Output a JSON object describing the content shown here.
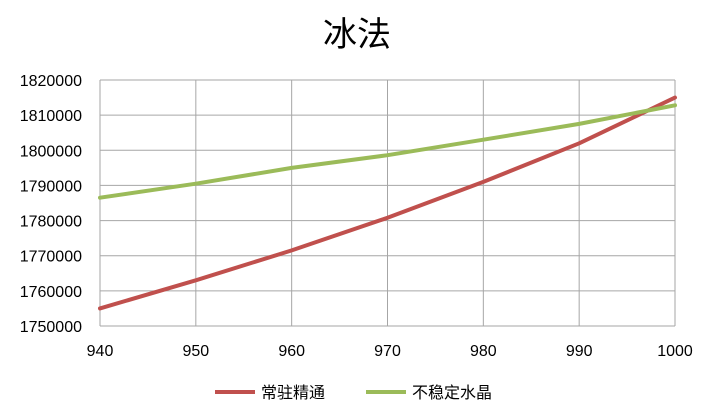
{
  "chart_data": {
    "type": "line",
    "title": "冰法",
    "xlabel": "",
    "ylabel": "",
    "xlim": [
      940,
      1000
    ],
    "ylim": [
      1750000,
      1820000
    ],
    "x_ticks": [
      "940",
      "950",
      "960",
      "970",
      "980",
      "990",
      "1000"
    ],
    "y_ticks": [
      "1750000",
      "1760000",
      "1770000",
      "1780000",
      "1790000",
      "1800000",
      "1810000",
      "1820000"
    ],
    "grid": true,
    "legend_position": "bottom",
    "x": [
      940,
      950,
      960,
      970,
      980,
      990,
      1000
    ],
    "series": [
      {
        "name": "常驻精通",
        "color": "#c0504d",
        "values": [
          1755000,
          1763000,
          1771500,
          1780800,
          1791000,
          1802000,
          1815000
        ]
      },
      {
        "name": "不稳定水晶",
        "color": "#9bbb59",
        "values": [
          1786500,
          1790500,
          1795000,
          1798600,
          1803000,
          1807500,
          1812800
        ]
      }
    ]
  }
}
